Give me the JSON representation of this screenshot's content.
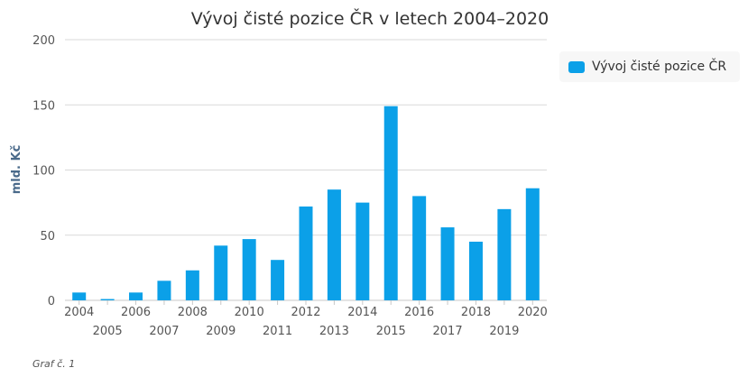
{
  "caption": "Graf č. 1",
  "colors": {
    "bar": "#0ba0e8",
    "grid": "#d9d9d9",
    "axis": "#c8c8c8"
  },
  "chart_data": {
    "type": "bar",
    "title": "Vývoj čisté pozice ČR v letech 2004–2020",
    "xlabel": "",
    "ylabel": "mld. Kč",
    "ylim": [
      0,
      200
    ],
    "yticks": [
      0,
      50,
      100,
      150,
      200
    ],
    "grid": true,
    "legend_position": "top-right",
    "categories": [
      "2004",
      "2005",
      "2006",
      "2007",
      "2008",
      "2009",
      "2010",
      "2011",
      "2012",
      "2013",
      "2014",
      "2015",
      "2016",
      "2017",
      "2018",
      "2019",
      "2020"
    ],
    "series": [
      {
        "name": "Vývoj čisté pozice ČR",
        "values": [
          6,
          1,
          6,
          15,
          23,
          42,
          47,
          31,
          72,
          85,
          75,
          149,
          80,
          56,
          45,
          70,
          86
        ]
      }
    ]
  }
}
